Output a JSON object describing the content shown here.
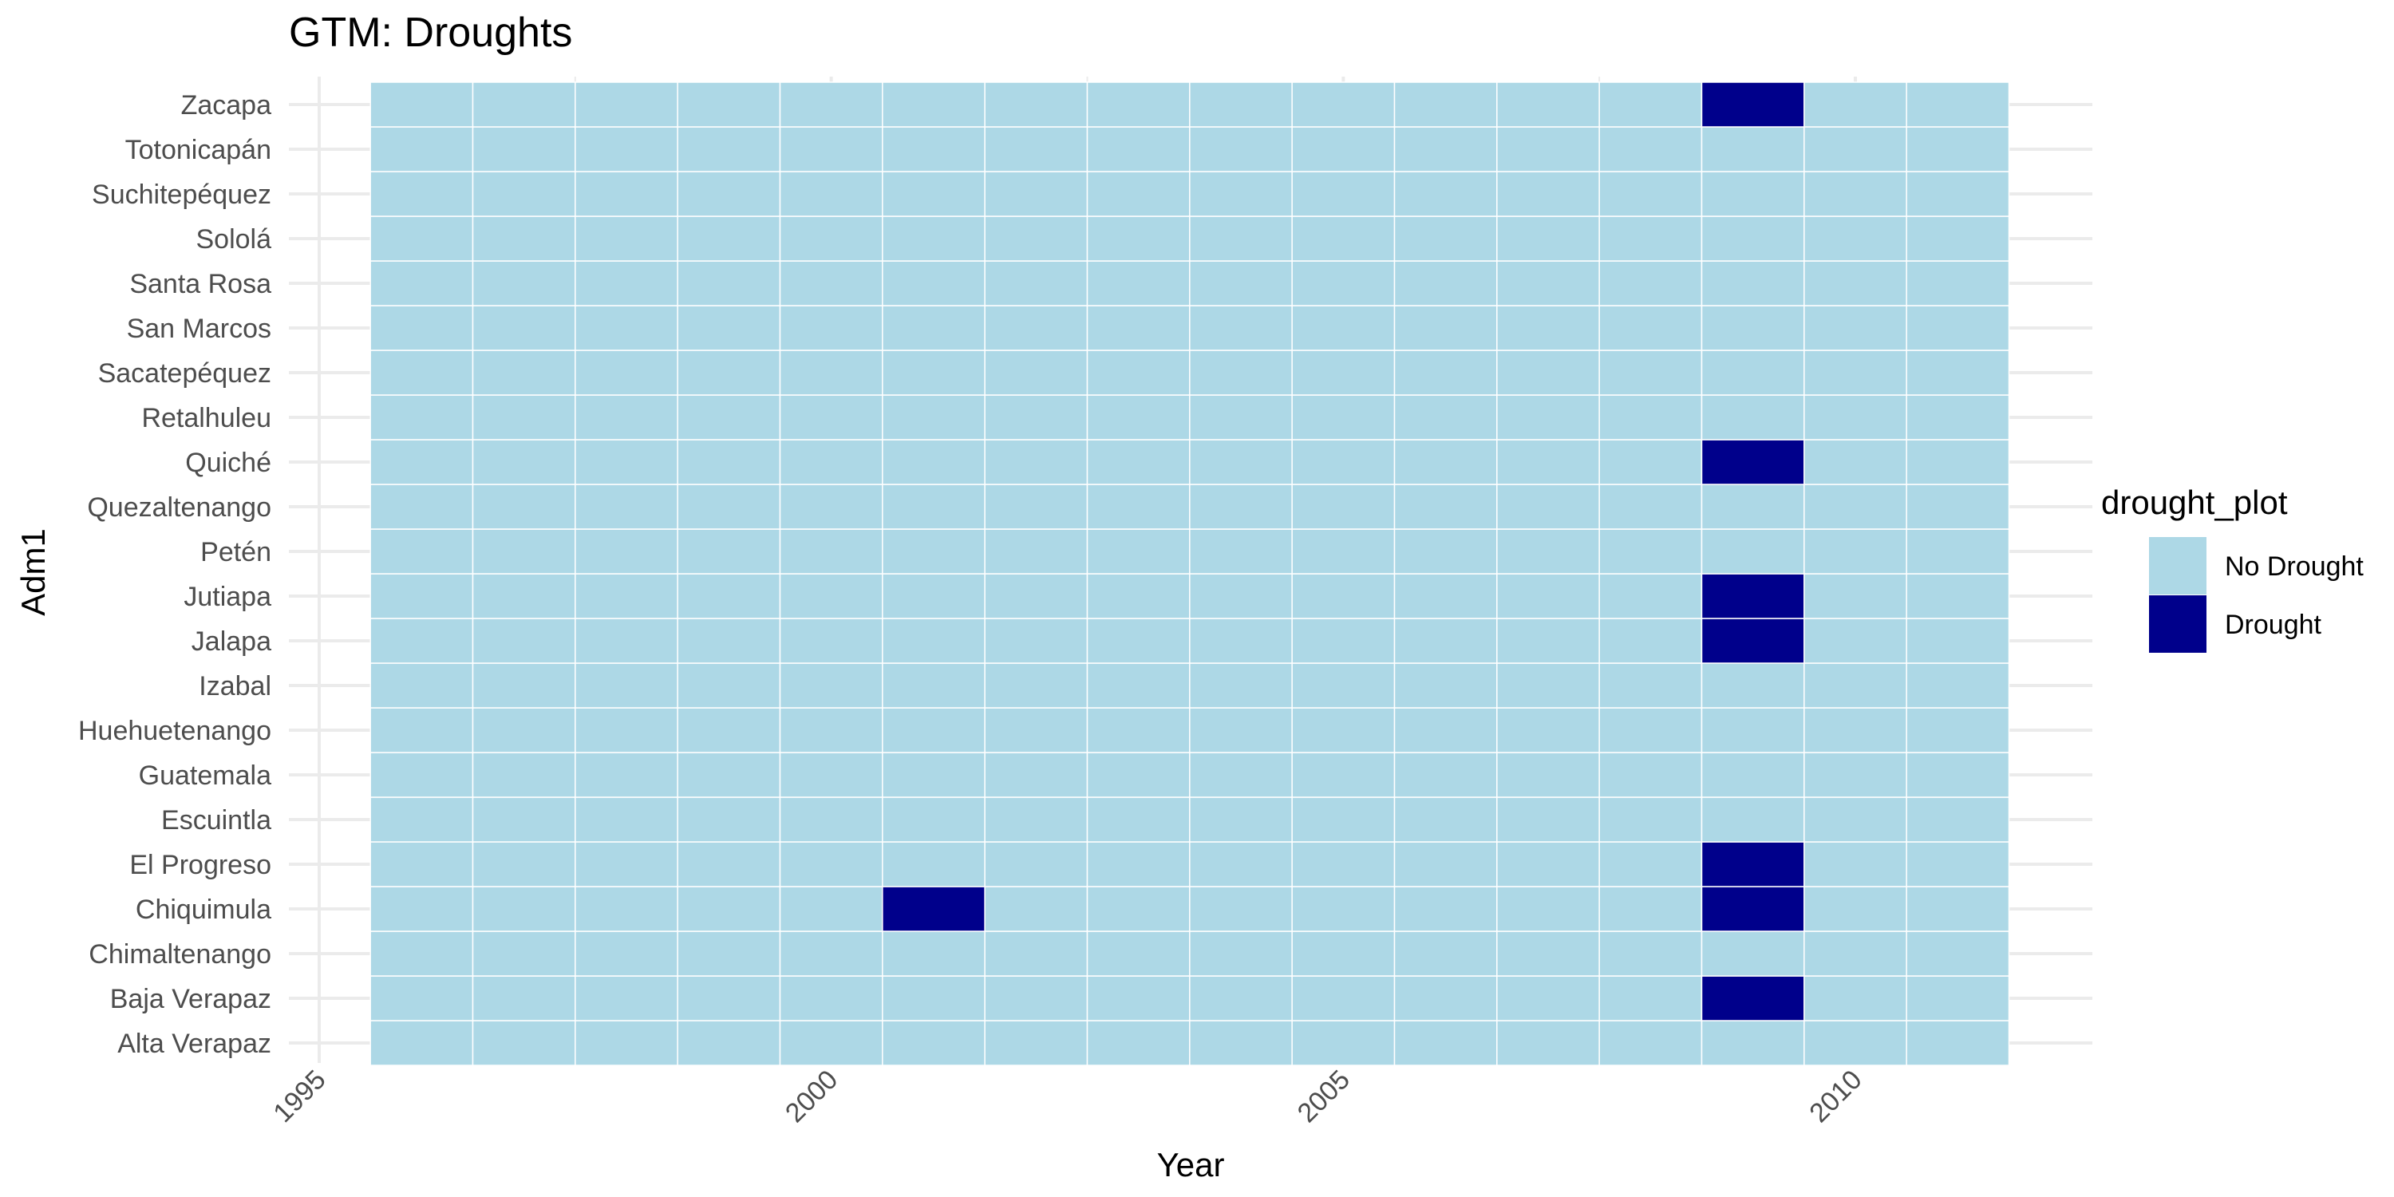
{
  "chart_data": {
    "type": "heatmap",
    "title": "GTM: Droughts",
    "xlabel": "Year",
    "ylabel": "Adm1",
    "x_ticks": [
      1995,
      2000,
      2005,
      2010
    ],
    "xlim": [
      1994.5,
      2012.3
    ],
    "x_years": [
      1996,
      1997,
      1998,
      1999,
      2000,
      2001,
      2002,
      2003,
      2004,
      2005,
      2006,
      2007,
      2008,
      2009,
      2010,
      2011
    ],
    "rows": [
      "Alta Verapaz",
      "Baja Verapaz",
      "Chimaltenango",
      "Chiquimula",
      "El Progreso",
      "Escuintla",
      "Guatemala",
      "Huehuetenango",
      "Izabal",
      "Jalapa",
      "Jutiapa",
      "Petén",
      "Quezaltenango",
      "Quiché",
      "Retalhuleu",
      "Sacatepéquez",
      "San Marcos",
      "Santa Rosa",
      "Sololá",
      "Suchitepéquez",
      "Totonicapán",
      "Zacapa"
    ],
    "droughts": [
      {
        "row": "Baja Verapaz",
        "year": 2009
      },
      {
        "row": "Chiquimula",
        "year": 2001
      },
      {
        "row": "Chiquimula",
        "year": 2009
      },
      {
        "row": "El Progreso",
        "year": 2009
      },
      {
        "row": "Jalapa",
        "year": 2009
      },
      {
        "row": "Jutiapa",
        "year": 2009
      },
      {
        "row": "Quiché",
        "year": 2009
      },
      {
        "row": "Zacapa",
        "year": 2009
      }
    ],
    "legend": {
      "title": "drought_plot",
      "position": "right",
      "items": [
        {
          "label": "No Drought",
          "color": "#add8e6"
        },
        {
          "label": "Drought",
          "color": "#00008b"
        }
      ]
    },
    "colors": {
      "no_drought": "#add8e6",
      "drought": "#00008b",
      "grid": "#ebebeb",
      "tile_border": "#ffffff"
    },
    "grid": true
  }
}
